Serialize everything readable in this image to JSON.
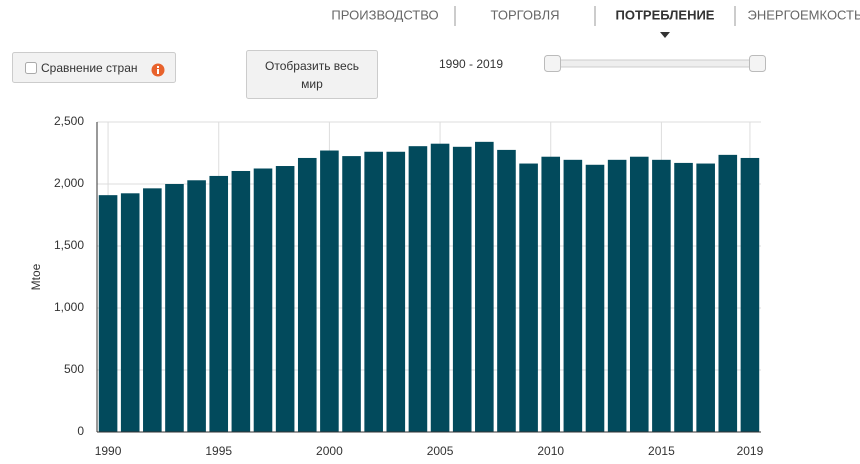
{
  "tabs": [
    "ПРОИЗВОДСТВО",
    "ТОРГОВЛЯ",
    "ПОТРЕБЛЕНИЕ",
    "ЭНЕРГОЕМКОСТЬ"
  ],
  "active_tab": 2,
  "controls": {
    "compare_checkbox": "Сравнение стран",
    "world_button": "Отобразить весь мир",
    "range_label": "1990 - 2019"
  },
  "chart_data": {
    "type": "bar",
    "y_label": "Mtoe",
    "color": "#024a5c",
    "grid": true,
    "x": [
      1990,
      1991,
      1992,
      1993,
      1994,
      1995,
      1996,
      1997,
      1998,
      1999,
      2000,
      2001,
      2002,
      2003,
      2004,
      2005,
      2006,
      2007,
      2008,
      2009,
      2010,
      2011,
      2012,
      2013,
      2014,
      2015,
      2016,
      2017,
      2018,
      2019
    ],
    "values": [
      1910,
      1925,
      1965,
      2000,
      2030,
      2065,
      2105,
      2125,
      2145,
      2210,
      2270,
      2225,
      2260,
      2260,
      2305,
      2325,
      2300,
      2340,
      2275,
      2165,
      2220,
      2195,
      2155,
      2195,
      2220,
      2195,
      2170,
      2165,
      2235,
      2210
    ],
    "xlim": [
      1989.5,
      2019.5
    ],
    "xticks": [
      1990,
      1995,
      2000,
      2005,
      2010,
      2015,
      2019
    ],
    "ylim": [
      0,
      2500
    ],
    "yticks": [
      0,
      500,
      {
        "value": 1000,
        "label": "1,000"
      },
      {
        "value": 1500,
        "label": "1,500"
      },
      {
        "value": 2000,
        "label": "2,000"
      },
      {
        "value": 2500,
        "label": "2,500"
      }
    ]
  }
}
